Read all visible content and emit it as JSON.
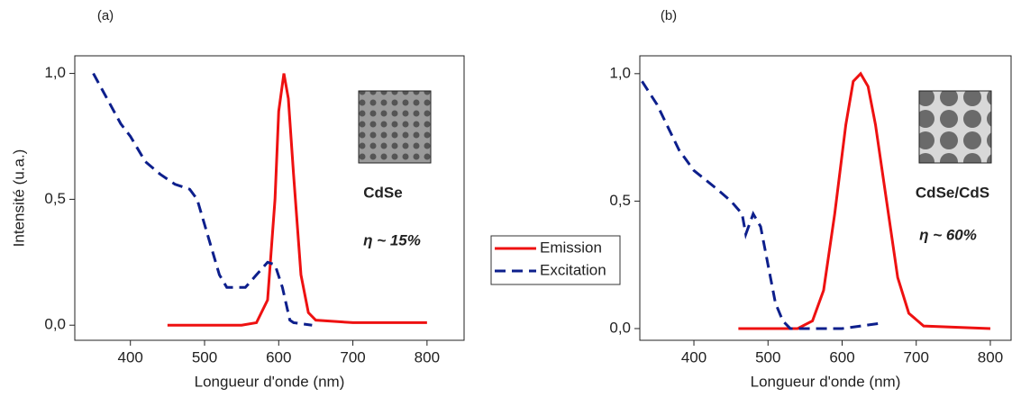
{
  "chart_data": [
    {
      "type": "line",
      "label": "(a)",
      "ylabel": "Intensité (u.a.)",
      "xlabel": "Longueur d'onde (nm)",
      "annotations": [
        "CdSe",
        "η ~ 15%"
      ],
      "xlim": [
        325,
        850
      ],
      "ylim": [
        -0.06,
        1.07
      ],
      "xticks": [
        400,
        500,
        600,
        700,
        800
      ],
      "yticks": [
        {
          "value": 0,
          "label": "0,0"
        },
        {
          "value": 0.5,
          "label": "0,5"
        },
        {
          "value": 1,
          "label": "1,0"
        }
      ],
      "series": [
        {
          "name": "Emission",
          "color": "#ee1111",
          "style": "solid",
          "x": [
            450,
            550,
            570,
            585,
            595,
            600,
            607,
            613,
            620,
            630,
            640,
            650,
            700,
            800
          ],
          "values": [
            0,
            0,
            0.01,
            0.1,
            0.5,
            0.85,
            1.0,
            0.9,
            0.6,
            0.2,
            0.05,
            0.02,
            0.01,
            0.01
          ]
        },
        {
          "name": "Excitation",
          "color": "#0d1f8c",
          "style": "dashed",
          "x": [
            350,
            387,
            400,
            420,
            440,
            460,
            480,
            490,
            510,
            520,
            530,
            555,
            570,
            585,
            595,
            605,
            615,
            620,
            645
          ],
          "values": [
            1.0,
            0.8,
            0.75,
            0.65,
            0.6,
            0.56,
            0.54,
            0.5,
            0.3,
            0.2,
            0.15,
            0.15,
            0.2,
            0.25,
            0.24,
            0.15,
            0.02,
            0.01,
            0.0
          ]
        }
      ]
    },
    {
      "type": "line",
      "label": "(b)",
      "xlabel": "Longueur d'onde (nm)",
      "annotations": [
        "CdSe/CdS",
        "η ~ 60%"
      ],
      "xlim": [
        327,
        828
      ],
      "ylim": [
        -0.046,
        1.07
      ],
      "xticks": [
        400,
        500,
        600,
        700,
        800
      ],
      "yticks": [
        {
          "value": 0,
          "label": "0,0"
        },
        {
          "value": 0.5,
          "label": "0,5"
        },
        {
          "value": 1,
          "label": "1,0"
        }
      ],
      "series": [
        {
          "color": "#ee1111",
          "style": "solid",
          "x": [
            460,
            540,
            560,
            575,
            590,
            605,
            615,
            625,
            635,
            645,
            660,
            675,
            690,
            710,
            800
          ],
          "values": [
            0,
            0,
            0.03,
            0.15,
            0.45,
            0.8,
            0.97,
            1.0,
            0.95,
            0.8,
            0.5,
            0.2,
            0.06,
            0.01,
            0.0
          ]
        },
        {
          "color": "#0d1f8c",
          "style": "dashed",
          "x": [
            330,
            350,
            380,
            400,
            430,
            450,
            465,
            470,
            480,
            490,
            500,
            510,
            520,
            530,
            600,
            650
          ],
          "values": [
            0.97,
            0.88,
            0.7,
            0.62,
            0.55,
            0.5,
            0.45,
            0.37,
            0.45,
            0.4,
            0.25,
            0.1,
            0.03,
            0.0,
            0.0,
            0.02
          ]
        }
      ]
    }
  ]
}
